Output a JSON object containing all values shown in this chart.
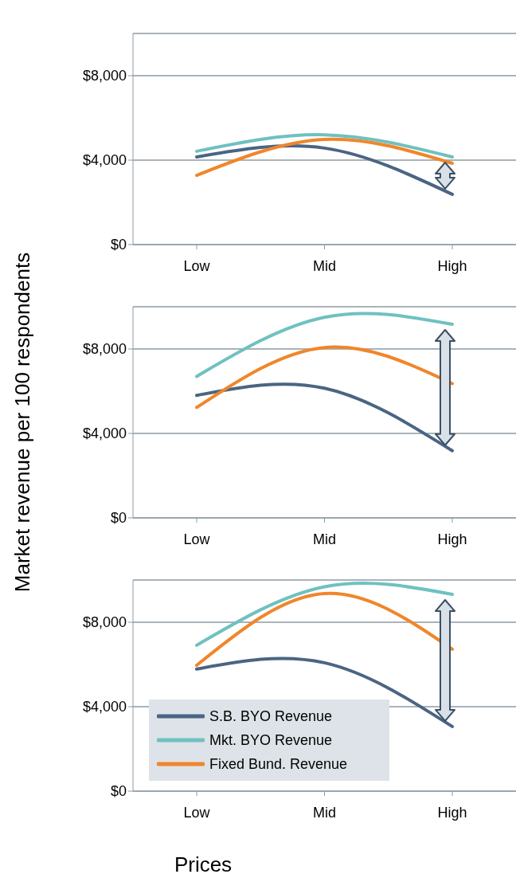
{
  "chart_data": [
    {
      "type": "line",
      "categories": [
        "Low",
        "Mid",
        "High"
      ],
      "ylim": [
        0,
        10000
      ],
      "yticks": [
        {
          "value": 0,
          "label": "$0"
        },
        {
          "value": 4000,
          "label": "$4,000"
        },
        {
          "value": 8000,
          "label": "$8,000"
        }
      ],
      "grid": "y",
      "series": [
        {
          "color": "#4a6583",
          "values": [
            4150,
            4570,
            2380
          ]
        },
        {
          "color": "#6fc1c0",
          "values": [
            4420,
            5200,
            4150
          ]
        },
        {
          "color": "#f0862a",
          "values": [
            3280,
            4980,
            3850
          ]
        }
      ]
    },
    {
      "type": "line",
      "ylabel": "Market revenue per 100 respondents",
      "categories": [
        "Low",
        "Mid",
        "High"
      ],
      "ylim": [
        0,
        10000
      ],
      "yticks": [
        {
          "value": 0,
          "label": "$0"
        },
        {
          "value": 4000,
          "label": "$4,000"
        },
        {
          "value": 8000,
          "label": "$8,000"
        }
      ],
      "grid": "y",
      "series": [
        {
          "color": "#4a6583",
          "values": [
            5800,
            6140,
            3180
          ]
        },
        {
          "color": "#6fc1c0",
          "values": [
            6700,
            9500,
            9170
          ]
        },
        {
          "color": "#f0862a",
          "values": [
            5230,
            8070,
            6360
          ]
        }
      ]
    },
    {
      "type": "line",
      "xlabel": "Prices",
      "categories": [
        "Low",
        "Mid",
        "High"
      ],
      "ylim": [
        0,
        10000
      ],
      "yticks": [
        {
          "value": 0,
          "label": "$0"
        },
        {
          "value": 4000,
          "label": "$4,000"
        },
        {
          "value": 8000,
          "label": "$8,000"
        }
      ],
      "grid": "y",
      "legend": "bottom left",
      "series": [
        {
          "name": "S.B. BYO Revenue",
          "color": "#4a6583",
          "values": [
            5780,
            6080,
            3060
          ]
        },
        {
          "name": "Mkt. BYO Revenue",
          "color": "#6fc1c0",
          "values": [
            6910,
            9680,
            9320
          ]
        },
        {
          "name": "Fixed Bund. Revenue",
          "color": "#f0862a",
          "values": [
            5960,
            9360,
            6720
          ]
        }
      ]
    }
  ]
}
